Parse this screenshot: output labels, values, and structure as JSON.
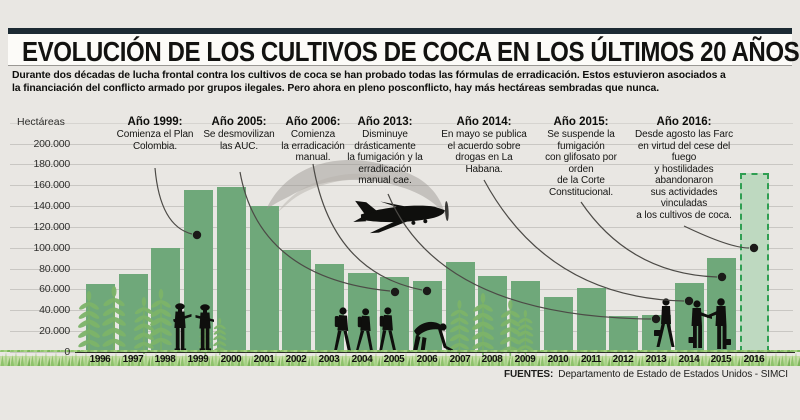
{
  "header": {
    "title": "EVOLUCIÓN DE LOS CULTIVOS DE COCA EN LOS ÚLTIMOS 20 AÑOS",
    "subtitle": "Durante dos décadas de lucha frontal contra los cultivos de coca se han probado todas las fórmulas de erradicación. Estos estuvieron asociados a\nla financiación del conflicto armado por grupos ilegales. Pero ahora en pleno posconflicto, hay más hectáreas sembradas que nunca."
  },
  "chart_data": {
    "type": "bar",
    "title": "Evolución de los cultivos de coca en los últimos 20 años",
    "ylabel": "Hectáreas",
    "xlabel": "",
    "categories": [
      "1996",
      "1997",
      "1998",
      "1999",
      "2000",
      "2001",
      "2002",
      "2003",
      "2004",
      "2005",
      "2006",
      "2007",
      "2008",
      "2009",
      "2010",
      "2011",
      "2012",
      "2013",
      "2014",
      "2015",
      "2016"
    ],
    "values": [
      65000,
      75000,
      100000,
      156000,
      159000,
      140000,
      98000,
      85000,
      76000,
      72000,
      68000,
      87000,
      73000,
      68000,
      53000,
      62000,
      35000,
      36000,
      66000,
      90000,
      172000
    ],
    "ylim": [
      0,
      200000
    ],
    "ytick_step": 20000,
    "ytick_labels": [
      "200.000",
      "180.000",
      "160.000",
      "140.000",
      "120.000",
      "100.000",
      "80.000",
      "60.000",
      "40.000",
      "20.000",
      "0"
    ],
    "grid": true,
    "legend": "none",
    "bar_color": "#6fa87a",
    "projected_bar": {
      "year": "2016",
      "fill": "#bed9c0",
      "border": "#2f9e52",
      "style": "dashed"
    }
  },
  "annotations": [
    {
      "year": "1999",
      "title": "Año 1999:",
      "body": "Comienza el Plan\nColombia."
    },
    {
      "year": "2005",
      "title": "Año 2005:",
      "body": "Se desmovilizan\nlas AUC."
    },
    {
      "year": "2006",
      "title": "Año 2006:",
      "body": "Comienza\nla erradicación\nmanual."
    },
    {
      "year": "2013",
      "title": "Año 2013:",
      "body": "Disminuye\ndrásticamente\nla fumigación y la\nerradicación\nmanual cae."
    },
    {
      "year": "2014",
      "title": "Año 2014:",
      "body": "En mayo se publica\nel acuerdo sobre\ndrogas en La\nHabana."
    },
    {
      "year": "2015",
      "title": "Año 2015:",
      "body": "Se suspende la\nfumigación\ncon glifosato por\norden\nde la Corte\nConstitucional."
    },
    {
      "year": "2016",
      "title": "Año 2016:",
      "body": "Desde agosto las Farc\nen virtud del cese del\nfuego\ny hostilidades\nabandonaron\nsus actividades\nvinculadas\na los cultivos de coca."
    }
  ],
  "footer": {
    "sources_label": "FUENTES:",
    "sources_text": "Departamento de Estado de Estados Unidos - SIMCI"
  },
  "colors": {
    "background": "#e9e7e3",
    "top_rule": "#1c2a33",
    "bar": "#6fa87a",
    "projected_fill": "#bed9c0",
    "projected_border": "#2f9e52",
    "gridline": "#c9c7c3",
    "grass": "#9cc979",
    "silhouette": "#0f0f0d"
  }
}
